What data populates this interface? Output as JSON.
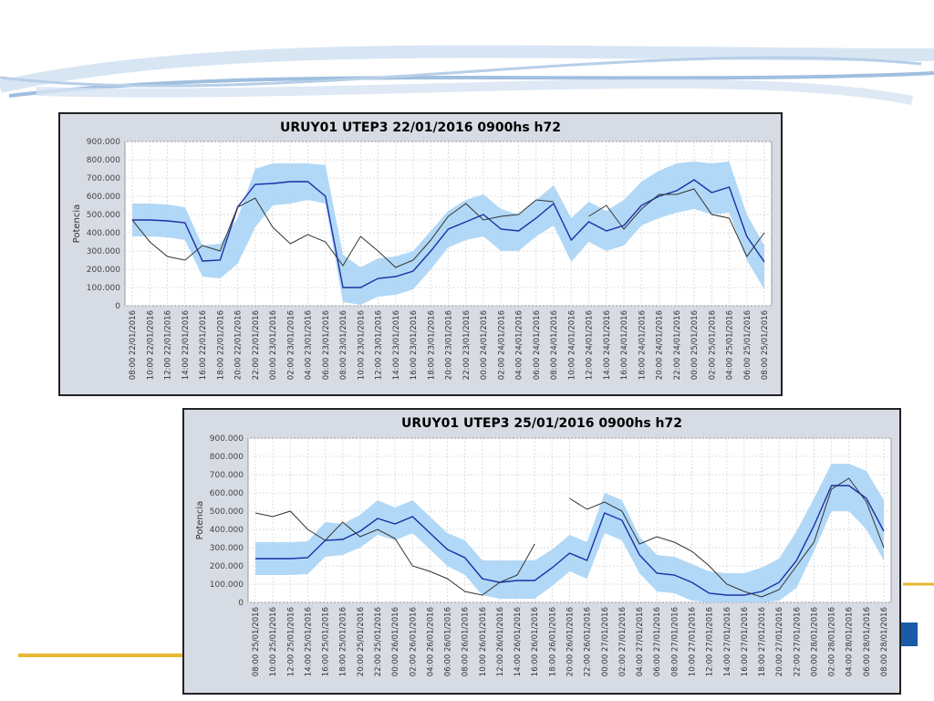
{
  "chart_data": [
    {
      "type": "line",
      "title": "URUY01  UTEP3  22/01/2016  0900hs  h72",
      "y_label": "Potencia",
      "categories": [
        "08:00 22/01/2016",
        "10:00 22/01/2016",
        "12:00 22/01/2016",
        "14:00 22/01/2016",
        "16:00 22/01/2016",
        "18:00 22/01/2016",
        "20:00 22/01/2016",
        "22:00 22/01/2016",
        "00:00 23/01/2016",
        "02:00 23/01/2016",
        "04:00 23/01/2016",
        "06:00 23/01/2016",
        "08:00 23/01/2016",
        "10:00 23/01/2016",
        "12:00 23/01/2016",
        "14:00 23/01/2016",
        "16:00 23/01/2016",
        "18:00 23/01/2016",
        "20:00 23/01/2016",
        "22:00 23/01/2016",
        "00:00 24/01/2016",
        "02:00 24/01/2016",
        "04:00 24/01/2016",
        "06:00 24/01/2016",
        "08:00 24/01/2016",
        "10:00 24/01/2016",
        "12:00 24/01/2016",
        "14:00 24/01/2016",
        "16:00 24/01/2016",
        "18:00 24/01/2016",
        "20:00 24/01/2016",
        "22:00 24/01/2016",
        "00:00 25/01/2016",
        "02:00 25/01/2016",
        "04:00 25/01/2016",
        "06:00 25/01/2016",
        "08:00 25/01/2016"
      ],
      "ylim": [
        0,
        900000
      ],
      "yticks": [
        0,
        {
          "value": 100000,
          "label": "100.000"
        },
        {
          "value": 200000,
          "label": "200.000"
        },
        {
          "value": 300000,
          "label": "300.000"
        },
        {
          "value": 400000,
          "label": "400.000"
        },
        {
          "value": 500000,
          "label": "500.000"
        },
        {
          "value": 600000,
          "label": "600.000"
        },
        {
          "value": 700000,
          "label": "700.000"
        },
        {
          "value": 800000,
          "label": "800.000"
        },
        {
          "value": 900000,
          "label": "900.000"
        }
      ],
      "grid": true,
      "band_color": "#a8d4f5",
      "band_upper": [
        560000,
        560000,
        555000,
        540000,
        330000,
        340000,
        480000,
        750000,
        780000,
        780000,
        780000,
        770000,
        280000,
        210000,
        260000,
        270000,
        300000,
        410000,
        520000,
        580000,
        610000,
        530000,
        500000,
        580000,
        660000,
        480000,
        570000,
        520000,
        580000,
        680000,
        740000,
        780000,
        790000,
        780000,
        790000,
        500000,
        330000
      ],
      "band_lower": [
        380000,
        380000,
        375000,
        360000,
        160000,
        150000,
        230000,
        430000,
        550000,
        560000,
        580000,
        560000,
        20000,
        5000,
        50000,
        60000,
        90000,
        200000,
        320000,
        360000,
        380000,
        300000,
        300000,
        380000,
        440000,
        240000,
        350000,
        300000,
        330000,
        440000,
        480000,
        510000,
        530000,
        500000,
        510000,
        250000,
        90000
      ],
      "series": [
        {
          "color": "#1a2fa8",
          "values": [
            470000,
            470000,
            465000,
            455000,
            245000,
            250000,
            540000,
            665000,
            670000,
            680000,
            680000,
            600000,
            100000,
            100000,
            150000,
            160000,
            190000,
            300000,
            420000,
            460000,
            500000,
            420000,
            410000,
            480000,
            560000,
            360000,
            460000,
            410000,
            440000,
            550000,
            600000,
            630000,
            690000,
            620000,
            650000,
            380000,
            240000
          ]
        },
        {
          "color": "#333333",
          "values": [
            470000,
            350000,
            270000,
            250000,
            330000,
            300000,
            540000,
            590000,
            430000,
            340000,
            390000,
            350000,
            220000,
            380000,
            300000,
            210000,
            250000,
            360000,
            490000,
            560000,
            470000,
            490000,
            500000,
            580000,
            570000,
            null,
            490000,
            550000,
            420000,
            530000,
            610000,
            610000,
            640000,
            500000,
            480000,
            270000,
            400000
          ]
        }
      ]
    },
    {
      "type": "line",
      "title": "URUY01  UTEP3  25/01/2016  0900hs  h72",
      "y_label": "Potencia",
      "categories": [
        "08:00 25/01/2016",
        "10:00 25/01/2016",
        "12:00 25/01/2016",
        "14:00 25/01/2016",
        "16:00 25/01/2016",
        "18:00 25/01/2016",
        "20:00 25/01/2016",
        "22:00 25/01/2016",
        "00:00 26/01/2016",
        "02:00 26/01/2016",
        "04:00 26/01/2016",
        "06:00 26/01/2016",
        "08:00 26/01/2016",
        "10:00 26/01/2016",
        "12:00 26/01/2016",
        "14:00 26/01/2016",
        "16:00 26/01/2016",
        "18:00 26/01/2016",
        "20:00 26/01/2016",
        "22:00 26/01/2016",
        "00:00 27/01/2016",
        "02:00 27/01/2016",
        "04:00 27/01/2016",
        "06:00 27/01/2016",
        "08:00 27/01/2016",
        "10:00 27/01/2016",
        "12:00 27/01/2016",
        "14:00 27/01/2016",
        "16:00 27/01/2016",
        "18:00 27/01/2016",
        "20:00 27/01/2016",
        "22:00 27/01/2016",
        "00:00 28/01/2016",
        "02:00 28/01/2016",
        "04:00 28/01/2016",
        "06:00 28/01/2016",
        "08:00 28/01/2016"
      ],
      "ylim": [
        0,
        900000
      ],
      "yticks": [
        0,
        {
          "value": 100000,
          "label": "100.000"
        },
        {
          "value": 200000,
          "label": "200.000"
        },
        {
          "value": 300000,
          "label": "300.000"
        },
        {
          "value": 400000,
          "label": "400.000"
        },
        {
          "value": 500000,
          "label": "500.000"
        },
        {
          "value": 600000,
          "label": "600.000"
        },
        {
          "value": 700000,
          "label": "700.000"
        },
        {
          "value": 800000,
          "label": "800.000"
        },
        {
          "value": 900000,
          "label": "900.000"
        }
      ],
      "grid": true,
      "band_color": "#a8d4f5",
      "band_upper": [
        330000,
        330000,
        330000,
        335000,
        440000,
        430000,
        480000,
        560000,
        520000,
        560000,
        470000,
        380000,
        340000,
        230000,
        230000,
        230000,
        230000,
        290000,
        370000,
        330000,
        600000,
        560000,
        360000,
        260000,
        250000,
        210000,
        170000,
        160000,
        160000,
        190000,
        240000,
        390000,
        570000,
        760000,
        760000,
        720000,
        560000
      ],
      "band_lower": [
        150000,
        150000,
        150000,
        155000,
        250000,
        260000,
        300000,
        370000,
        340000,
        380000,
        290000,
        200000,
        150000,
        40000,
        20000,
        20000,
        20000,
        90000,
        170000,
        130000,
        380000,
        340000,
        160000,
        60000,
        50000,
        10000,
        0,
        0,
        0,
        0,
        10000,
        80000,
        280000,
        500000,
        500000,
        400000,
        230000
      ],
      "series": [
        {
          "color": "#1a2fa8",
          "values": [
            240000,
            240000,
            240000,
            245000,
            340000,
            345000,
            390000,
            460000,
            430000,
            470000,
            380000,
            290000,
            245000,
            130000,
            110000,
            120000,
            120000,
            190000,
            270000,
            230000,
            490000,
            450000,
            260000,
            160000,
            150000,
            110000,
            50000,
            40000,
            40000,
            60000,
            110000,
            230000,
            420000,
            640000,
            640000,
            570000,
            390000
          ]
        },
        {
          "color": "#333333",
          "values": [
            490000,
            470000,
            500000,
            400000,
            340000,
            440000,
            360000,
            400000,
            350000,
            200000,
            170000,
            130000,
            60000,
            40000,
            110000,
            150000,
            320000,
            null,
            570000,
            510000,
            550000,
            500000,
            320000,
            360000,
            330000,
            280000,
            200000,
            100000,
            60000,
            30000,
            70000,
            200000,
            330000,
            620000,
            680000,
            550000,
            300000
          ]
        }
      ]
    }
  ]
}
